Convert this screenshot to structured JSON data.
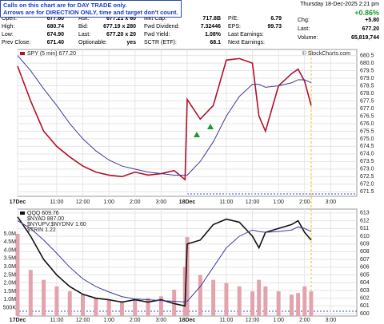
{
  "note": [
    "Calls on this chart are for DAY TRADE only.",
    "Arrows are for DIRECTION ONLY, time and target don't count."
  ],
  "quote": {
    "cells": [
      [
        [
          "Open:",
          "677.60"
        ],
        [
          "Ask:",
          "677.21 x 60"
        ],
        [
          "Mkt Cap:",
          "717.8B"
        ],
        [
          "P/E:",
          "6.79"
        ]
      ],
      [
        [
          "High:",
          "680.74"
        ],
        [
          "Bid:",
          "677.19 x 280"
        ],
        [
          "Fwd Dividend:",
          "7.32446"
        ],
        [
          "EPS:",
          "99.73"
        ]
      ],
      [
        [
          "Low:",
          "674.90"
        ],
        [
          "Last:",
          "677.20 x 20"
        ],
        [
          "Fwd Yield:",
          "1.08%"
        ],
        [
          "Last Earnings:"
        ]
      ],
      [
        [
          "Prev Close:",
          "671.40"
        ],
        [
          "Optionable:",
          "yes"
        ],
        [
          "SCTR (ETF):",
          "68.1"
        ],
        [
          "Next Earnings:"
        ]
      ]
    ],
    "datetime": "Thursday  18-Dec-2025  2:21 pm",
    "change_pct": "+0.86%",
    "chg": [
      "Chg:",
      "+5.80"
    ],
    "last": [
      "Last:",
      "677.20"
    ],
    "volume": [
      "Volume:",
      "65,819,744"
    ]
  },
  "watermark": "© StockCharts.com",
  "chart_data": [
    {
      "type": "line",
      "grid": true,
      "x": [
        0,
        6,
        12,
        18,
        24,
        30,
        36,
        42,
        48,
        54,
        60,
        66,
        72,
        77,
        78,
        84,
        90,
        96,
        102,
        108,
        111,
        114,
        120,
        126,
        129,
        132,
        135
      ],
      "xlim": [
        0,
        156
      ],
      "xticks": [
        {
          "value": 0,
          "label": "17Dec"
        },
        {
          "value": 18,
          "label": "11:00"
        },
        {
          "value": 30,
          "label": "12:00"
        },
        {
          "value": 42,
          "label": "1:00"
        },
        {
          "value": 54,
          "label": "2:00"
        },
        {
          "value": 66,
          "label": "3:00"
        },
        {
          "value": 78,
          "label": "18Dec"
        },
        {
          "value": 96,
          "label": "11:00"
        },
        {
          "value": 108,
          "label": "12:00"
        },
        {
          "value": 120,
          "label": "1:00"
        },
        {
          "value": 132,
          "label": "2:00"
        },
        {
          "value": 144,
          "label": "3:00"
        }
      ],
      "ylim": [
        671.2,
        680.9
      ],
      "yticks": [
        671.5,
        {
          "value": 672,
          "label": "672.0"
        },
        672.5,
        {
          "value": 673,
          "label": "673.0"
        },
        673.5,
        {
          "value": 674,
          "label": "674.0"
        },
        674.5,
        {
          "value": 675,
          "label": "675.0"
        },
        675.5,
        {
          "value": 676,
          "label": "676.0"
        },
        676.5,
        {
          "value": 677,
          "label": "677.0"
        },
        677.5,
        {
          "value": 678,
          "label": "678.0"
        },
        678.5,
        {
          "value": 679,
          "label": "679.0"
        },
        679.5,
        {
          "value": 680,
          "label": "680.0"
        },
        680.5
      ],
      "series": [
        {
          "name": "SPY (5 min) 677.20",
          "color": "#b0102a",
          "values": [
            679.8,
            677.5,
            675.5,
            674.5,
            673.8,
            673.2,
            672.8,
            672.6,
            672.5,
            672.8,
            672.6,
            672.7,
            672.9,
            672.3,
            677.6,
            676.3,
            677.2,
            680.2,
            680.3,
            680.0,
            676.5,
            675.5,
            678.5,
            679.3,
            679.6,
            678.8,
            677.2
          ]
        },
        {
          "color": "#3a3a9a",
          "values": [
            680.5,
            679.5,
            678.3,
            677.2,
            676,
            675,
            674.2,
            673.6,
            673.2,
            673,
            672.8,
            672.7,
            672.6,
            672.6,
            672.6,
            673.5,
            674.8,
            676.5,
            677.8,
            678.6,
            678.6,
            678.4,
            678.5,
            678.7,
            678.9,
            678.9,
            678.7
          ]
        }
      ]
    },
    {
      "type": "line",
      "grid": true,
      "x": [
        0,
        6,
        12,
        18,
        24,
        30,
        36,
        42,
        48,
        54,
        60,
        66,
        72,
        77,
        78,
        84,
        90,
        96,
        102,
        108,
        111,
        114,
        120,
        126,
        129,
        132,
        135
      ],
      "xlim": [
        0,
        156
      ],
      "xticks": [
        {
          "value": 0,
          "label": "17Dec"
        },
        {
          "value": 18,
          "label": "11:00"
        },
        {
          "value": 30,
          "label": "12:00"
        },
        {
          "value": 42,
          "label": "1:00"
        },
        {
          "value": 54,
          "label": "2:00"
        },
        {
          "value": 66,
          "label": "3:00"
        },
        {
          "value": 78,
          "label": "18Dec"
        },
        {
          "value": 96,
          "label": "11:00"
        },
        {
          "value": 108,
          "label": "12:00"
        },
        {
          "value": 120,
          "label": "1:00"
        },
        {
          "value": 132,
          "label": "2:00"
        },
        {
          "value": 144,
          "label": "3:00"
        }
      ],
      "ylim": [
        0,
        6500000
      ],
      "yticks": [
        {
          "value": 500000,
          "label": "500K"
        },
        {
          "value": 1000000,
          "label": "1.0M"
        },
        {
          "value": 1500000,
          "label": "1.5M"
        },
        {
          "value": 2000000,
          "label": "2.0M"
        },
        {
          "value": 2500000,
          "label": "2.5M"
        },
        {
          "value": 3000000,
          "label": "3.0M"
        },
        {
          "value": 3500000,
          "label": "3.5M"
        },
        {
          "value": 4000000,
          "label": "4.0M"
        },
        {
          "value": 4500000,
          "label": "4.5M"
        },
        {
          "value": 5000000,
          "label": "5.0M"
        }
      ],
      "y2lim": [
        599.7,
        613.5
      ],
      "y2ticks": [
        600,
        601,
        602,
        603,
        604,
        605,
        606,
        607,
        608,
        609,
        610,
        611,
        612,
        613
      ],
      "legend_items": [
        "$NYAD 887.00",
        "$NYUPV:$NYDNV 1.60",
        "$TRIN 1.22"
      ],
      "series": [
        {
          "type": "bar",
          "color": "#e3a3ad",
          "axis": "y",
          "values": [
            5000000,
            2800000,
            2200000,
            1800000,
            1500000,
            1300000,
            1100000,
            1000000,
            900000,
            1000000,
            1100000,
            1200000,
            1600000,
            3000000,
            4800000,
            2500000,
            2200000,
            2000000,
            1800000,
            1500000,
            2200000,
            1800000,
            1500000,
            1300000,
            1400000,
            1800000,
            1500000
          ]
        },
        {
          "name": "QQQ 609.76",
          "color": "#111111",
          "axis": "y2",
          "values": [
            612.5,
            610,
            607,
            605,
            603.5,
            602.5,
            602,
            601.8,
            601.5,
            601.8,
            601.5,
            601.8,
            601.3,
            601,
            609,
            609.5,
            611.5,
            612.2,
            611.8,
            610,
            608.5,
            610.5,
            611,
            611.5,
            612,
            610.5,
            609.5
          ]
        },
        {
          "color": "#3a3a9a",
          "axis": "y2",
          "values": [
            612,
            611,
            609.5,
            607.8,
            606,
            604.5,
            603.5,
            602.8,
            602.2,
            601.9,
            601.8,
            601.7,
            601.6,
            601.5,
            601.6,
            603.5,
            606,
            608.5,
            610,
            610.8,
            610.6,
            610.5,
            610.6,
            610.8,
            611.2,
            611,
            610.6
          ]
        }
      ]
    }
  ]
}
